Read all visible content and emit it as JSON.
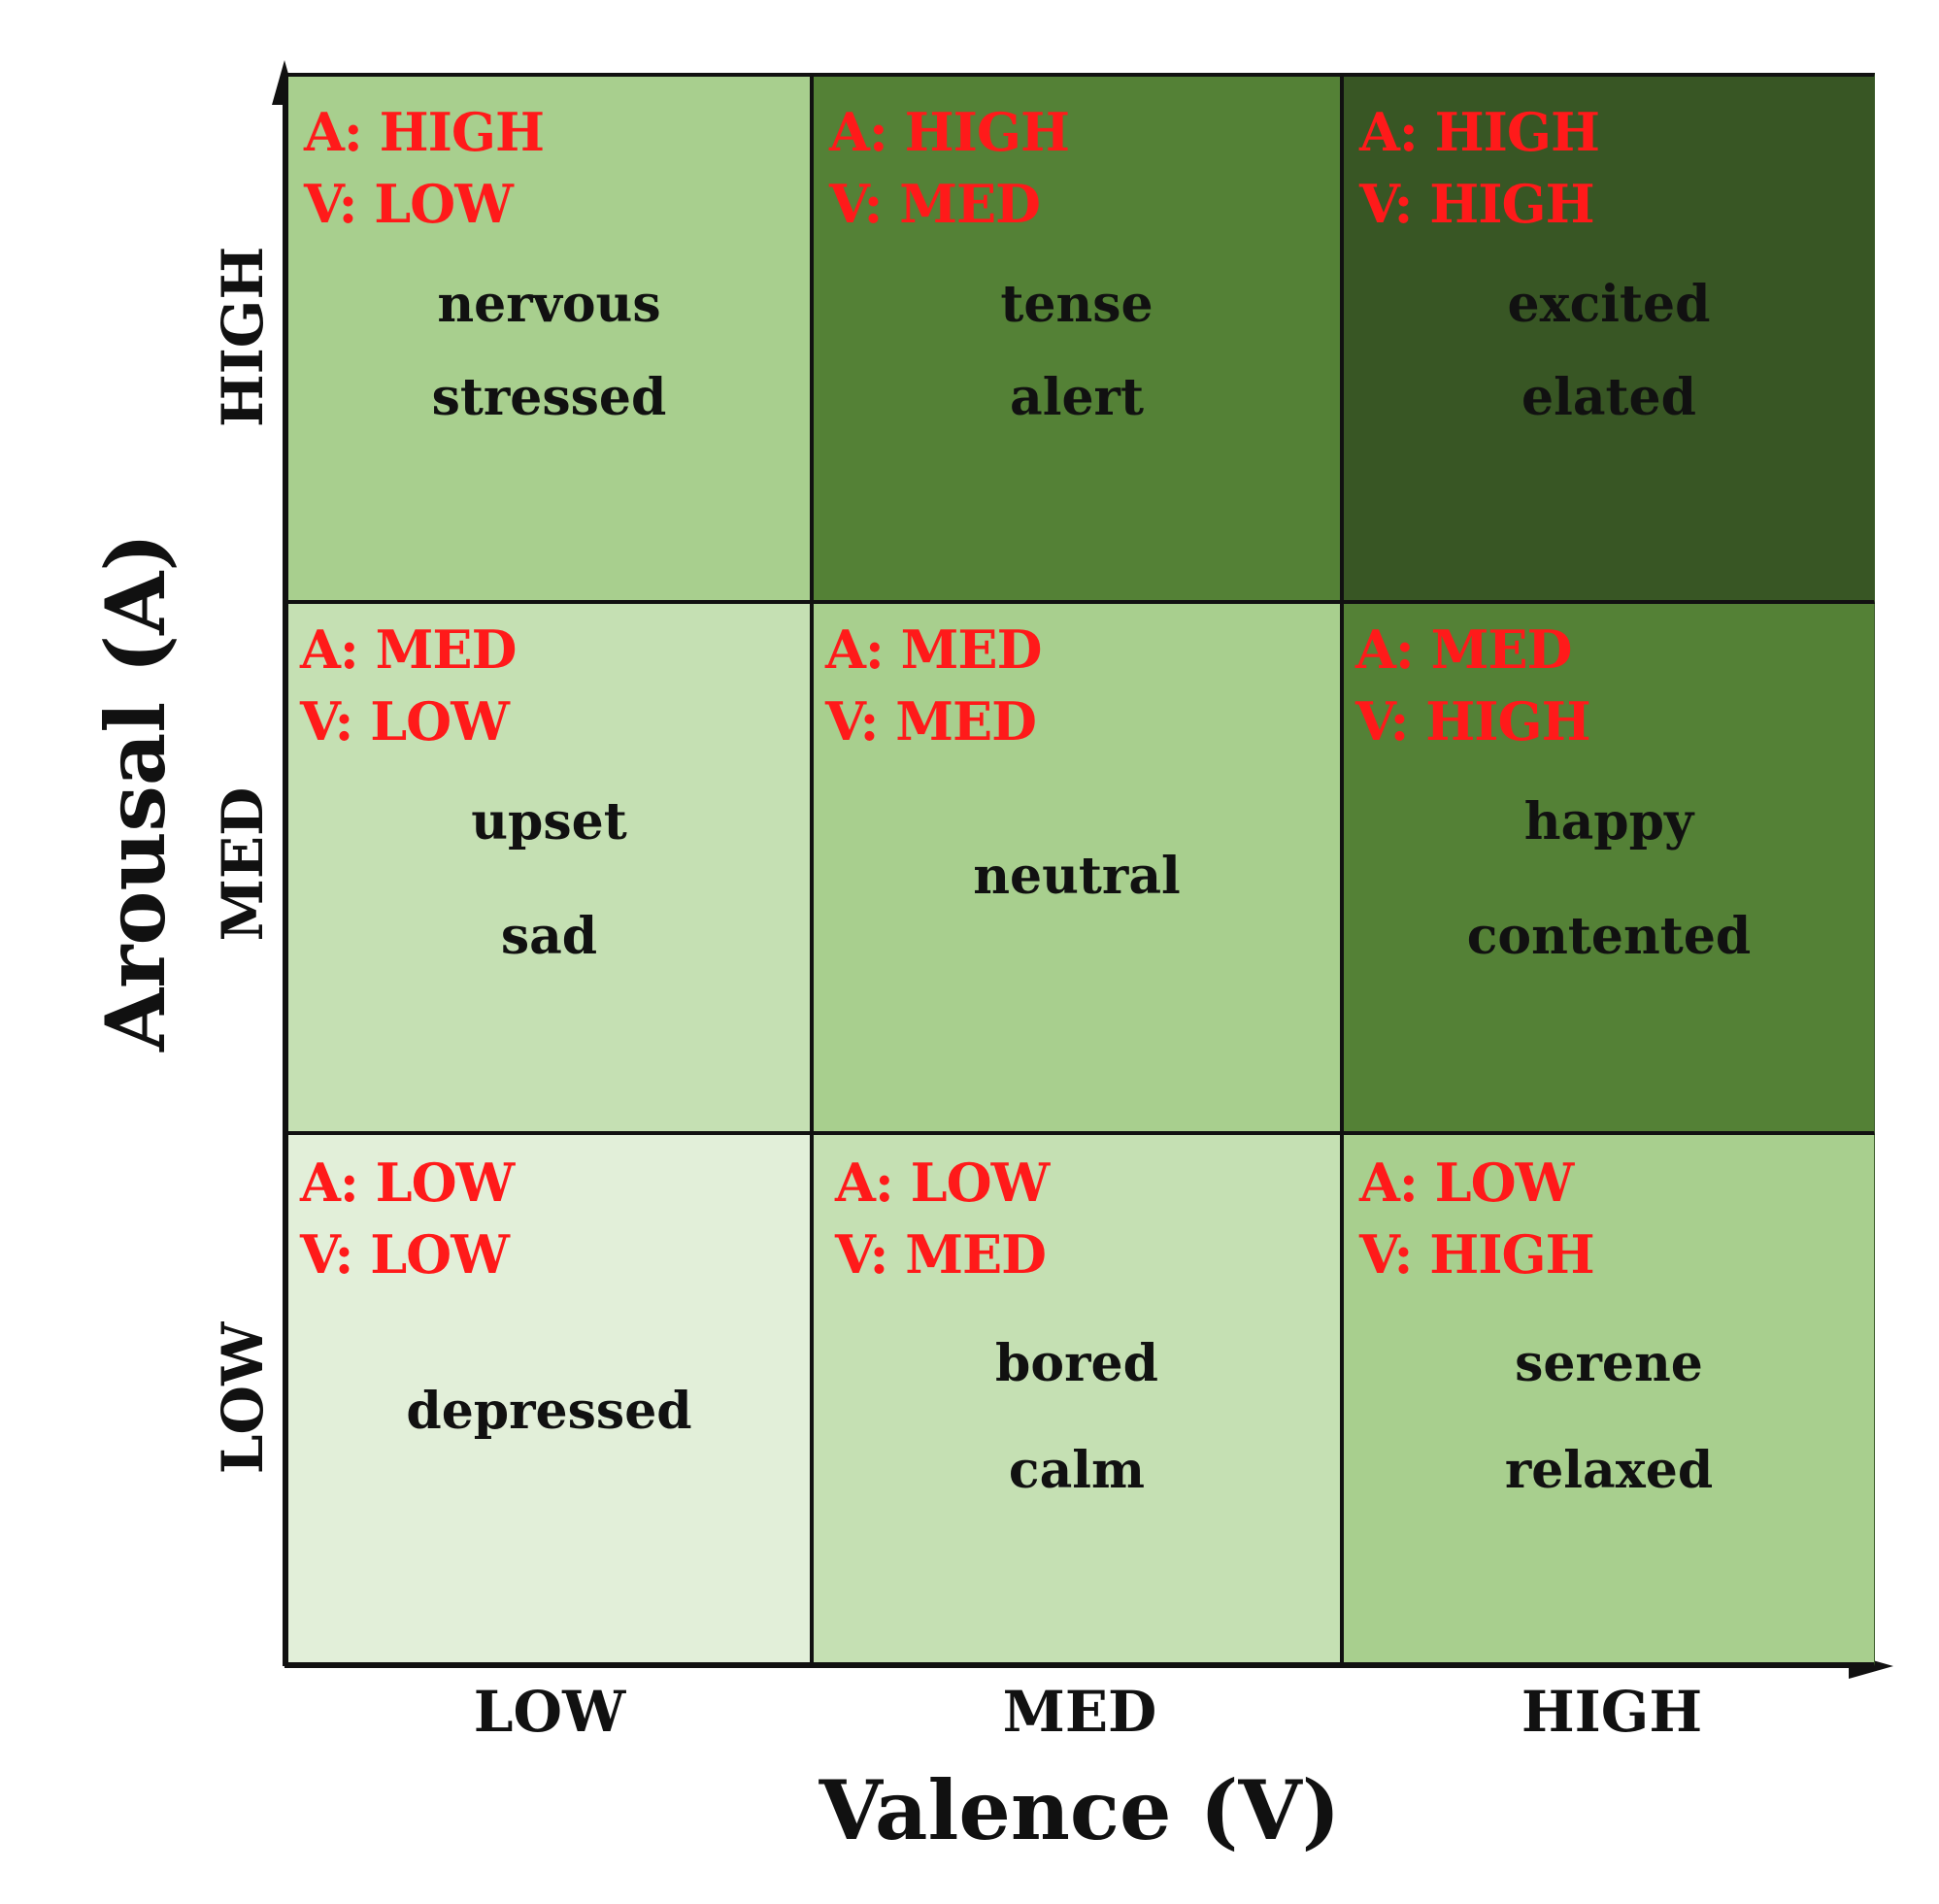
{
  "axes": {
    "y_title": "Arousal (A)",
    "x_title": "Valence (V)",
    "y_levels": [
      "HIGH",
      "MED",
      "LOW"
    ],
    "x_levels": [
      "LOW",
      "MED",
      "HIGH"
    ]
  },
  "cells": [
    {
      "a": "A: HIGH",
      "v": "V: LOW",
      "words": [
        "nervous",
        "stressed"
      ],
      "color": "#a8cf8e"
    },
    {
      "a": "A: HIGH",
      "v": "V: MED",
      "words": [
        "tense",
        "alert"
      ],
      "color": "#548136"
    },
    {
      "a": "A: HIGH",
      "v": "V: HIGH",
      "words": [
        "excited",
        "elated"
      ],
      "color": "#385624"
    },
    {
      "a": "A: MED",
      "v": "V: LOW",
      "words": [
        "upset",
        "sad"
      ],
      "color": "#c5e0b3"
    },
    {
      "a": "A: MED",
      "v": "V: MED",
      "words": [
        "neutral"
      ],
      "color": "#a8cf8e"
    },
    {
      "a": "A: MED",
      "v": "V: HIGH",
      "words": [
        "happy",
        "contented"
      ],
      "color": "#548136"
    },
    {
      "a": "A: LOW",
      "v": "V: LOW",
      "words": [
        "depressed"
      ],
      "color": "#e2efd9"
    },
    {
      "a": "A: LOW",
      "v": "V: MED",
      "words": [
        "bored",
        "calm"
      ],
      "color": "#c5e0b3"
    },
    {
      "a": "A: LOW",
      "v": "V: HIGH",
      "words": [
        "serene",
        "relaxed"
      ],
      "color": "#a8cf8e"
    }
  ],
  "colors": {
    "tag_text": "#ff1a1a",
    "word_text": "#111111",
    "grid_lines": "#111111"
  }
}
